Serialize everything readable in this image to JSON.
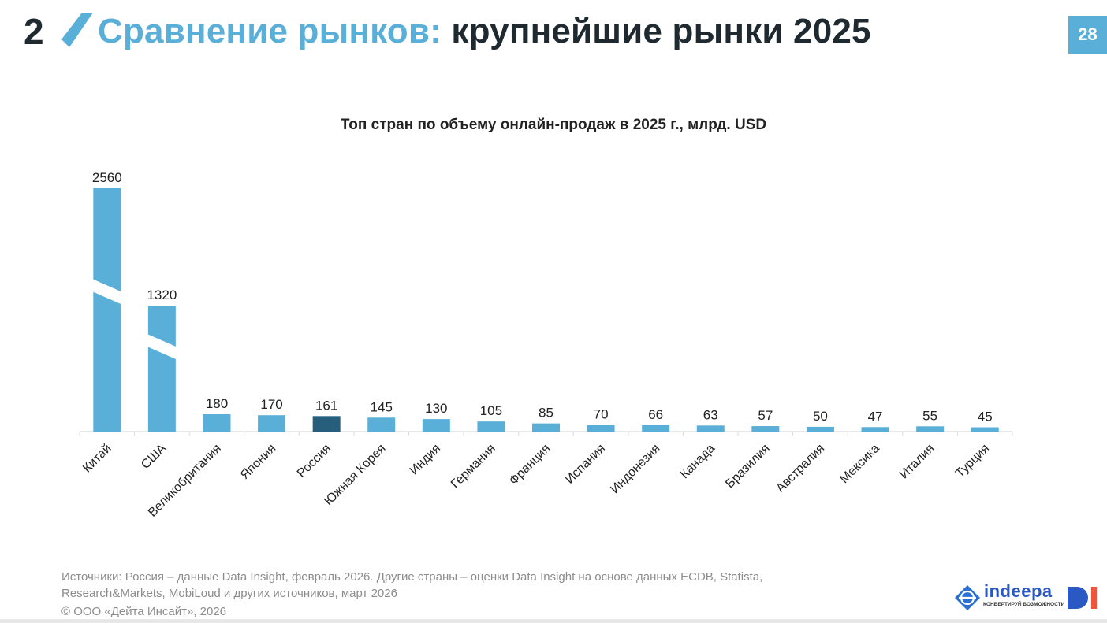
{
  "header": {
    "section_number": "2",
    "title_accent": "Сравнение рынков:",
    "title_main": " крупнейшие рынки 2025",
    "page_number": "28",
    "accent_color": "#5aafd9"
  },
  "chart_data": {
    "type": "bar",
    "title": "Топ стран по объему онлайн-продаж в 2025 г., млрд. USD",
    "xlabel": "",
    "ylabel": "",
    "categories": [
      "Китай",
      "США",
      "Великобритания",
      "Япония",
      "Россия",
      "Южная Корея",
      "Индия",
      "Германия",
      "Франция",
      "Испания",
      "Индонезия",
      "Канада",
      "Бразилия",
      "Австралия",
      "Мексика",
      "Италия",
      "Турция"
    ],
    "values": [
      2560,
      1320,
      180,
      170,
      161,
      145,
      130,
      105,
      85,
      70,
      66,
      63,
      57,
      50,
      47,
      55,
      45
    ],
    "value_labels": [
      "2560",
      "1320",
      "180",
      "170",
      "161",
      "145",
      "130",
      "105",
      "85",
      "70",
      "66",
      "63",
      "57",
      "50",
      "47",
      "55",
      "45"
    ],
    "broken_bars": [
      "Китай",
      "США"
    ],
    "highlight": "Россия",
    "bar_color": "#5aafd9",
    "highlight_color": "#265e7c",
    "grid": false,
    "legend": "none"
  },
  "footer": {
    "sources": "Источники: Россия – данные Data Insight, февраль 2026. Другие страны – оценки Data Insight на основе данных ECDB, Statista, Research&Markets, MobiLoud и других источников, март 2026",
    "copyright": "© ООО «Дейта Инсайт», 2026",
    "logo_name": "indeepa",
    "logo_tagline": "КОНВЕРТИРУЙ ВОЗМОЖНОСТИ"
  }
}
